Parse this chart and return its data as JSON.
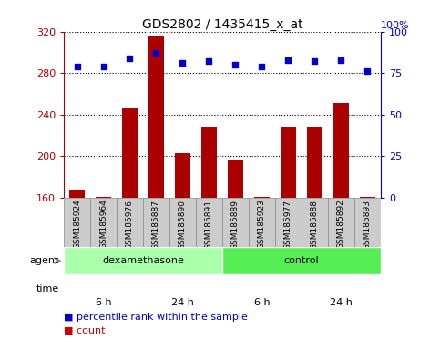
{
  "title": "GDS2802 / 1435415_x_at",
  "samples": [
    "GSM185924",
    "GSM185964",
    "GSM185976",
    "GSM185887",
    "GSM185890",
    "GSM185891",
    "GSM185889",
    "GSM185923",
    "GSM185977",
    "GSM185888",
    "GSM185892",
    "GSM185893"
  ],
  "counts": [
    168,
    161,
    247,
    316,
    203,
    228,
    196,
    161,
    228,
    228,
    251,
    161
  ],
  "percentile": [
    79,
    79,
    84,
    87,
    81,
    82,
    80,
    79,
    83,
    82,
    83,
    76
  ],
  "ylim_left": [
    160,
    320
  ],
  "ylim_right": [
    0,
    100
  ],
  "yticks_left": [
    160,
    200,
    240,
    280,
    320
  ],
  "yticks_right": [
    0,
    25,
    50,
    75,
    100
  ],
  "bar_color": "#aa0000",
  "dot_color": "#0000cc",
  "agent_groups": [
    {
      "label": "dexamethasone",
      "start": 0,
      "end": 6,
      "color": "#aaffaa"
    },
    {
      "label": "control",
      "start": 6,
      "end": 12,
      "color": "#55ee55"
    }
  ],
  "time_groups": [
    {
      "label": "6 h",
      "start": 0,
      "end": 3,
      "color": "#ee99ee"
    },
    {
      "label": "24 h",
      "start": 3,
      "end": 6,
      "color": "#cc44cc"
    },
    {
      "label": "6 h",
      "start": 6,
      "end": 9,
      "color": "#ee99ee"
    },
    {
      "label": "24 h",
      "start": 9,
      "end": 12,
      "color": "#cc44cc"
    }
  ],
  "legend_count_color": "#cc0000",
  "legend_pct_color": "#0000cc",
  "label_bg_color": "#cccccc",
  "label_border_color": "#888888"
}
